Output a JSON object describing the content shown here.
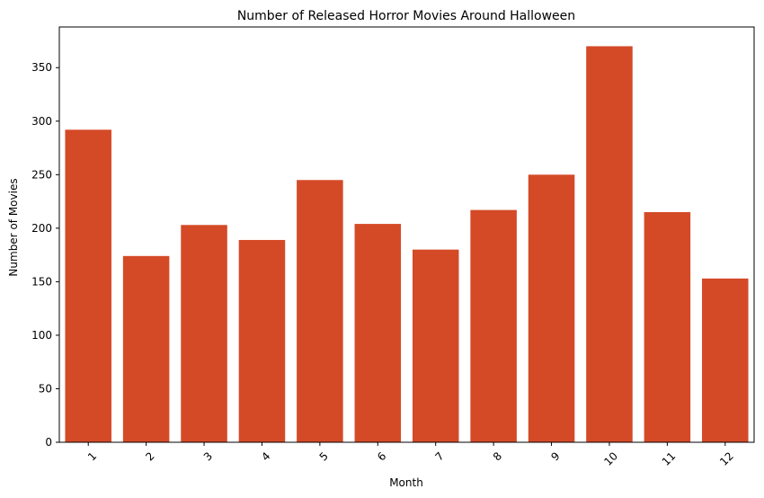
{
  "chart_data": {
    "type": "bar",
    "title": "Number of Released Horror Movies Around Halloween",
    "xlabel": "Month",
    "ylabel": "Number of Movies",
    "categories": [
      "1",
      "2",
      "3",
      "4",
      "5",
      "6",
      "7",
      "8",
      "9",
      "10",
      "11",
      "12"
    ],
    "values": [
      292,
      174,
      203,
      189,
      245,
      204,
      180,
      217,
      250,
      370,
      215,
      153
    ],
    "ylim": [
      0,
      388
    ],
    "yticks": [
      "0",
      "50",
      "100",
      "150",
      "200",
      "250",
      "300",
      "350"
    ],
    "grid": false,
    "legend": false,
    "x_tick_rotation_deg": 45,
    "colors": {
      "bar": "#d44a27",
      "axis": "#000000",
      "background": "#ffffff"
    }
  }
}
